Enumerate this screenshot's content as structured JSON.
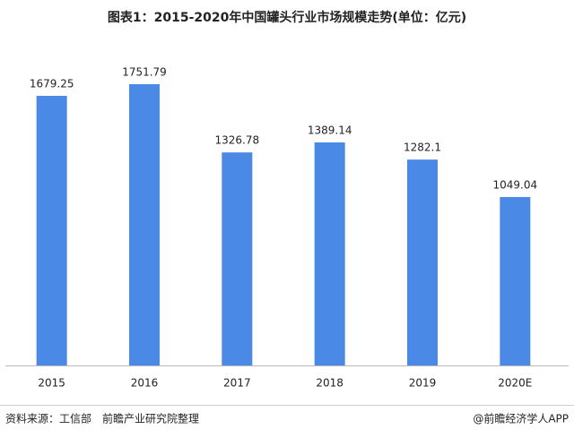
{
  "chart_data": {
    "type": "bar",
    "title": "图表1：2015-2020年中国罐头行业市场规模走势(单位：亿元)",
    "categories": [
      "2015",
      "2016",
      "2017",
      "2018",
      "2019",
      "2020E"
    ],
    "values": [
      1679.25,
      1751.79,
      1326.78,
      1389.14,
      1282.1,
      1049.04
    ],
    "color": "#4a89e6"
  },
  "footer": {
    "source": "资料来源：工信部　前瞻产业研究院整理",
    "credit": "@前瞻经济学人APP"
  }
}
